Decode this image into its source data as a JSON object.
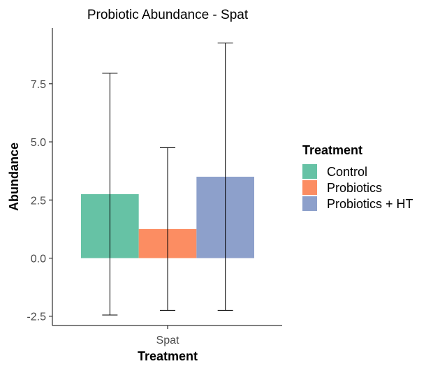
{
  "chart_data": {
    "type": "bar",
    "title": "Probiotic Abundance - Spat",
    "xlabel": "Treatment",
    "ylabel": "Abundance",
    "categories": [
      "Spat"
    ],
    "ylim": [
      -2.9,
      9.9
    ],
    "yticks": [
      -2.5,
      0.0,
      2.5,
      5.0,
      7.5
    ],
    "ytick_labels": [
      "-2.5",
      "0.0",
      "2.5",
      "5.0",
      "7.5"
    ],
    "legend_title": "Treatment",
    "legend_position": "right",
    "grid": false,
    "series": [
      {
        "name": "Control",
        "color": "#66C2A5",
        "values": [
          2.75
        ],
        "error_low": [
          -2.45
        ],
        "error_high": [
          7.95
        ]
      },
      {
        "name": "Probiotics",
        "color": "#FC8D62",
        "values": [
          1.25
        ],
        "error_low": [
          -2.25
        ],
        "error_high": [
          4.75
        ]
      },
      {
        "name": "Probiotics + HT",
        "color": "#8DA0CB",
        "values": [
          3.5
        ],
        "error_low": [
          -2.25
        ],
        "error_high": [
          9.25
        ]
      }
    ]
  }
}
